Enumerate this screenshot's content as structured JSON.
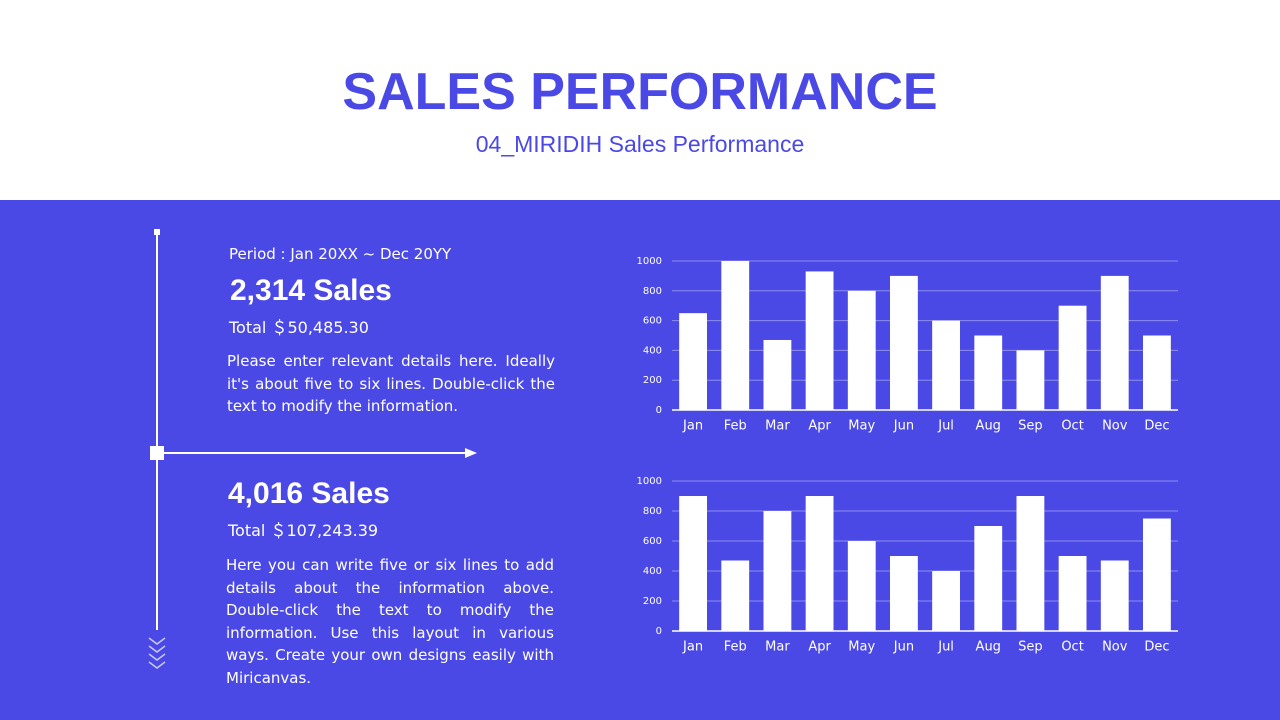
{
  "header": {
    "title": "SALES PERFORMANCE",
    "subtitle": "04_MIRIDIH Sales Performance"
  },
  "blocks": [
    {
      "period": "Period : Jan 20XX ~ Dec 20YY",
      "sales": "2,314 Sales",
      "total": "Total ＄50,485.30",
      "text": "Please enter relevant details here. Ideally it's about five to six lines. Double-click the text to modify the information."
    },
    {
      "sales": "4,016 Sales",
      "total": "Total ＄107,243.39",
      "text": "Here you can write five or six lines to add details about the information above. Double-click the text to modify the information. Use this layout in various ways. Create your own designs easily with Miricanvas."
    }
  ],
  "chart_data": [
    {
      "type": "bar",
      "categories": [
        "Jan",
        "Feb",
        "Mar",
        "Apr",
        "May",
        "Jun",
        "Jul",
        "Aug",
        "Sep",
        "Oct",
        "Nov",
        "Dec"
      ],
      "values": [
        650,
        1000,
        470,
        930,
        800,
        900,
        600,
        500,
        400,
        700,
        900,
        500
      ],
      "color": "#ffffff",
      "ylim": [
        0,
        1000
      ],
      "yticks": [
        0,
        200,
        400,
        600,
        800,
        1000
      ],
      "grid": true
    },
    {
      "type": "bar",
      "categories": [
        "Jan",
        "Feb",
        "Mar",
        "Apr",
        "May",
        "Jun",
        "Jul",
        "Aug",
        "Sep",
        "Oct",
        "Nov",
        "Dec"
      ],
      "values": [
        900,
        470,
        800,
        900,
        600,
        500,
        400,
        700,
        900,
        500,
        470,
        750
      ],
      "color": "#ffffff",
      "ylim": [
        0,
        1000
      ],
      "yticks": [
        0,
        200,
        400,
        600,
        800,
        1000
      ],
      "grid": true
    }
  ]
}
